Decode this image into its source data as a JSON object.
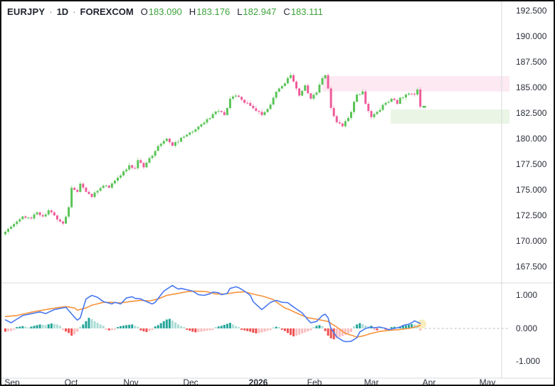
{
  "header": {
    "symbol": "EURJPY",
    "separator": "·",
    "timeframe": "1D",
    "exchange": "FOREXCOM",
    "ohlc": [
      {
        "label": "O",
        "value": "183.090"
      },
      {
        "label": "H",
        "value": "183.176"
      },
      {
        "label": "L",
        "value": "182.947"
      },
      {
        "label": "C",
        "value": "183.111"
      }
    ]
  },
  "price_axis": {
    "labels": [
      "192.500",
      "190.000",
      "187.500",
      "185.000",
      "182.500",
      "180.000",
      "177.500",
      "175.000",
      "172.500",
      "170.000",
      "167.500"
    ]
  },
  "indicator_axis": {
    "labels": [
      "1.000",
      "0.000",
      "-1.000"
    ]
  },
  "time_axis": {
    "labels": [
      "Sep",
      "Oct",
      "Nov",
      "Dec",
      "2026",
      "Feb",
      "Mar",
      "Apr",
      "May"
    ]
  },
  "colors": {
    "up": "#4ebf4b",
    "down": "#ee4f92",
    "current_price_tick": "#4ebf4b",
    "macd_line": "#4878f0",
    "signal_line": "#f7923b",
    "hist_pos": "#26a69a",
    "hist_pos_light": "#abdcd5",
    "hist_neg": "#f05151",
    "hist_neg_light": "#f8bcbd",
    "supply_zone": "#fce9f2",
    "demand_zone": "#eaf5e5",
    "glow": "#f7e8ae",
    "axis_text": "#2a2e39",
    "separator_line": "#d6d9de",
    "zero_dash": "#b8bbc2"
  },
  "chart_data": {
    "type": "candlestick",
    "title": "EURJPY 1D FOREXCOM with MACD",
    "candle_count": 145,
    "price_axis_ticks": [
      192.5,
      190.0,
      187.5,
      185.0,
      182.5,
      180.0,
      177.5,
      175.0,
      172.5,
      170.0,
      167.5
    ],
    "indicator_axis_ticks": [
      1.0,
      0.0,
      -1.0
    ],
    "time_ticks": [
      "Sep",
      "Oct",
      "Nov",
      "Dec",
      "2026",
      "Feb",
      "Mar",
      "Apr",
      "May"
    ],
    "last_close": 183.111,
    "close_anchors": [
      [
        0,
        170.9
      ],
      [
        2,
        171.4
      ],
      [
        4,
        171.9
      ],
      [
        6,
        172.4
      ],
      [
        9,
        172.2
      ],
      [
        11,
        172.8
      ],
      [
        13,
        172.4
      ],
      [
        15,
        173.0
      ],
      [
        18,
        172.1
      ],
      [
        20,
        171.7
      ],
      [
        22,
        173.3
      ],
      [
        23,
        175.2
      ],
      [
        25,
        174.8
      ],
      [
        26,
        175.6
      ],
      [
        28,
        174.8
      ],
      [
        30,
        174.3
      ],
      [
        32,
        174.9
      ],
      [
        34,
        175.4
      ],
      [
        36,
        175.2
      ],
      [
        38,
        175.9
      ],
      [
        40,
        176.4
      ],
      [
        41,
        176.8
      ],
      [
        43,
        177.4
      ],
      [
        45,
        177.1
      ],
      [
        46,
        177.9
      ],
      [
        48,
        177.2
      ],
      [
        50,
        178.1
      ],
      [
        52,
        178.8
      ],
      [
        54,
        179.5
      ],
      [
        56,
        180.0
      ],
      [
        58,
        179.3
      ],
      [
        60,
        179.7
      ],
      [
        62,
        180.2
      ],
      [
        64,
        180.6
      ],
      [
        66,
        180.9
      ],
      [
        68,
        181.4
      ],
      [
        70,
        181.9
      ],
      [
        72,
        182.4
      ],
      [
        74,
        182.7
      ],
      [
        76,
        182.3
      ],
      [
        78,
        183.9
      ],
      [
        80,
        184.2
      ],
      [
        82,
        183.8
      ],
      [
        83,
        183.5
      ],
      [
        85,
        183.2
      ],
      [
        87,
        182.7
      ],
      [
        89,
        182.3
      ],
      [
        91,
        182.9
      ],
      [
        93,
        184.0
      ],
      [
        95,
        184.9
      ],
      [
        97,
        185.4
      ],
      [
        99,
        186.2
      ],
      [
        101,
        184.9
      ],
      [
        102,
        184.2
      ],
      [
        104,
        185.2
      ],
      [
        106,
        183.9
      ],
      [
        108,
        184.5
      ],
      [
        110,
        185.9
      ],
      [
        111,
        186.2
      ],
      [
        112,
        184.9
      ],
      [
        113,
        183.0
      ],
      [
        115,
        181.6
      ],
      [
        117,
        181.2
      ],
      [
        118,
        181.7
      ],
      [
        120,
        182.6
      ],
      [
        121,
        183.6
      ],
      [
        122,
        184.3
      ],
      [
        124,
        184.6
      ],
      [
        125,
        183.4
      ],
      [
        127,
        182.1
      ],
      [
        128,
        182.4
      ],
      [
        130,
        182.8
      ],
      [
        131,
        183.3
      ],
      [
        133,
        183.6
      ],
      [
        134,
        183.9
      ],
      [
        136,
        183.4
      ],
      [
        137,
        184.0
      ],
      [
        139,
        184.3
      ],
      [
        140,
        184.4
      ],
      [
        142,
        184.3
      ],
      [
        143,
        184.8
      ],
      [
        144,
        183.111
      ]
    ],
    "zones": [
      {
        "name": "supply-zone",
        "price_top": 186.1,
        "price_bottom": 184.6,
        "start_index": 110.5
      },
      {
        "name": "demand-zone",
        "price_top": 182.85,
        "price_bottom": 181.45,
        "start_index": 134.1
      }
    ],
    "macd": {
      "macd_anchors": [
        [
          0,
          0.26
        ],
        [
          2,
          0.17
        ],
        [
          6,
          0.39
        ],
        [
          12,
          0.5
        ],
        [
          14,
          0.45
        ],
        [
          17,
          0.57
        ],
        [
          21,
          0.64
        ],
        [
          24,
          0.34
        ],
        [
          25,
          0.25
        ],
        [
          26,
          0.32
        ],
        [
          28,
          0.89
        ],
        [
          30,
          1.0
        ],
        [
          32,
          0.94
        ],
        [
          34,
          0.81
        ],
        [
          37,
          0.74
        ],
        [
          38,
          0.79
        ],
        [
          40,
          0.74
        ],
        [
          42,
          0.92
        ],
        [
          44,
          0.96
        ],
        [
          45,
          0.91
        ],
        [
          47,
          0.89
        ],
        [
          49,
          0.81
        ],
        [
          51,
          0.74
        ],
        [
          52,
          0.79
        ],
        [
          55,
          1.13
        ],
        [
          58,
          1.3
        ],
        [
          59,
          1.24
        ],
        [
          60,
          1.19
        ],
        [
          61,
          1.21
        ],
        [
          63,
          1.17
        ],
        [
          65,
          1.13
        ],
        [
          67,
          1.02
        ],
        [
          69,
          1.0
        ],
        [
          71,
          1.05
        ],
        [
          72,
          1.1
        ],
        [
          74,
          1.08
        ],
        [
          75,
          1.02
        ],
        [
          77,
          1.06
        ],
        [
          78,
          1.21
        ],
        [
          80,
          1.26
        ],
        [
          81,
          1.23
        ],
        [
          83,
          1.13
        ],
        [
          85,
          1.0
        ],
        [
          86,
          0.81
        ],
        [
          89,
          0.57
        ],
        [
          90,
          0.64
        ],
        [
          92,
          0.79
        ],
        [
          94,
          0.85
        ],
        [
          96,
          0.79
        ],
        [
          98,
          0.78
        ],
        [
          100,
          0.65
        ],
        [
          103,
          0.47
        ],
        [
          105,
          0.26
        ],
        [
          106,
          0.17
        ],
        [
          108,
          0.21
        ],
        [
          110,
          0.39
        ],
        [
          111,
          0.43
        ],
        [
          112,
          0.32
        ],
        [
          113,
          0.0
        ],
        [
          115,
          -0.26
        ],
        [
          117,
          -0.37
        ],
        [
          118,
          -0.4
        ],
        [
          120,
          -0.39
        ],
        [
          122,
          -0.28
        ],
        [
          123,
          -0.11
        ],
        [
          125,
          0.0
        ],
        [
          127,
          0.04
        ],
        [
          128,
          0.02
        ],
        [
          130,
          0.04
        ],
        [
          132,
          0.0
        ],
        [
          133,
          -0.04
        ],
        [
          135,
          0.0
        ],
        [
          137,
          0.04
        ],
        [
          138,
          0.09
        ],
        [
          140,
          0.13
        ],
        [
          141,
          0.17
        ],
        [
          142,
          0.23
        ],
        [
          143,
          0.19
        ],
        [
          144,
          0.15
        ]
      ],
      "signal_anchors": [
        [
          0,
          0.36
        ],
        [
          4,
          0.39
        ],
        [
          9,
          0.49
        ],
        [
          14,
          0.57
        ],
        [
          19,
          0.64
        ],
        [
          21,
          0.66
        ],
        [
          24,
          0.62
        ],
        [
          25,
          0.55
        ],
        [
          28,
          0.62
        ],
        [
          30,
          0.7
        ],
        [
          34,
          0.79
        ],
        [
          37,
          0.79
        ],
        [
          40,
          0.77
        ],
        [
          43,
          0.81
        ],
        [
          47,
          0.85
        ],
        [
          50,
          0.83
        ],
        [
          53,
          0.89
        ],
        [
          56,
          1.0
        ],
        [
          60,
          1.06
        ],
        [
          63,
          1.11
        ],
        [
          66,
          1.13
        ],
        [
          70,
          1.11
        ],
        [
          73,
          1.04
        ],
        [
          76,
          1.04
        ],
        [
          80,
          1.09
        ],
        [
          83,
          1.11
        ],
        [
          86,
          1.04
        ],
        [
          90,
          0.96
        ],
        [
          93,
          0.87
        ],
        [
          95,
          0.74
        ],
        [
          97,
          0.62
        ],
        [
          99,
          0.55
        ],
        [
          102,
          0.43
        ],
        [
          105,
          0.32
        ],
        [
          108,
          0.28
        ],
        [
          112,
          0.21
        ],
        [
          115,
          0.04
        ],
        [
          118,
          -0.15
        ],
        [
          122,
          -0.26
        ],
        [
          124,
          -0.23
        ],
        [
          127,
          -0.15
        ],
        [
          130,
          -0.09
        ],
        [
          133,
          -0.06
        ],
        [
          136,
          -0.04
        ],
        [
          140,
          0.0
        ],
        [
          142,
          0.04
        ],
        [
          144,
          0.09
        ]
      ],
      "histogram_anchors": [
        [
          0,
          -0.1
        ],
        [
          2,
          -0.08
        ],
        [
          3,
          -0.04
        ],
        [
          4,
          0.04
        ],
        [
          6,
          0.07
        ],
        [
          8,
          0.03
        ],
        [
          10,
          0.08
        ],
        [
          12,
          0.12
        ],
        [
          14,
          0.1
        ],
        [
          16,
          0.15
        ],
        [
          18,
          0.12
        ],
        [
          19,
          0.08
        ],
        [
          20,
          -0.05
        ],
        [
          22,
          -0.14
        ],
        [
          23,
          -0.22
        ],
        [
          24,
          -0.18
        ],
        [
          25,
          -0.1
        ],
        [
          26,
          0.05
        ],
        [
          27,
          0.12
        ],
        [
          28,
          0.22
        ],
        [
          29,
          0.32
        ],
        [
          30,
          0.28
        ],
        [
          31,
          0.22
        ],
        [
          32,
          0.17
        ],
        [
          33,
          0.12
        ],
        [
          34,
          0.08
        ],
        [
          35,
          -0.04
        ],
        [
          36,
          -0.06
        ],
        [
          37,
          -0.05
        ],
        [
          38,
          -0.04
        ],
        [
          39,
          0.04
        ],
        [
          40,
          0.07
        ],
        [
          42,
          0.1
        ],
        [
          44,
          0.12
        ],
        [
          45,
          0.08
        ],
        [
          46,
          0.05
        ],
        [
          47,
          -0.06
        ],
        [
          48,
          -0.09
        ],
        [
          49,
          -0.11
        ],
        [
          50,
          -0.08
        ],
        [
          51,
          -0.05
        ],
        [
          52,
          0.06
        ],
        [
          53,
          0.1
        ],
        [
          54,
          0.16
        ],
        [
          55,
          0.22
        ],
        [
          56,
          0.27
        ],
        [
          57,
          0.29
        ],
        [
          58,
          0.24
        ],
        [
          59,
          0.18
        ],
        [
          60,
          0.12
        ],
        [
          61,
          0.07
        ],
        [
          62,
          0.04
        ],
        [
          63,
          -0.04
        ],
        [
          64,
          -0.07
        ],
        [
          65,
          -0.1
        ],
        [
          66,
          -0.12
        ],
        [
          67,
          -0.11
        ],
        [
          68,
          -0.1
        ],
        [
          69,
          -0.08
        ],
        [
          70,
          -0.07
        ],
        [
          71,
          -0.06
        ],
        [
          72,
          -0.05
        ],
        [
          73,
          0.04
        ],
        [
          74,
          0.06
        ],
        [
          75,
          0.08
        ],
        [
          76,
          0.11
        ],
        [
          77,
          0.14
        ],
        [
          78,
          0.17
        ],
        [
          79,
          0.12
        ],
        [
          80,
          0.07
        ],
        [
          81,
          0.04
        ],
        [
          82,
          -0.04
        ],
        [
          83,
          -0.06
        ],
        [
          84,
          -0.08
        ],
        [
          85,
          -0.1
        ],
        [
          86,
          -0.13
        ],
        [
          87,
          -0.15
        ],
        [
          88,
          -0.14
        ],
        [
          89,
          -0.12
        ],
        [
          90,
          -0.1
        ],
        [
          91,
          -0.07
        ],
        [
          92,
          -0.05
        ],
        [
          93,
          0.03
        ],
        [
          94,
          0.05
        ],
        [
          95,
          0.04
        ],
        [
          96,
          -0.04
        ],
        [
          97,
          -0.08
        ],
        [
          98,
          -0.14
        ],
        [
          99,
          -0.2
        ],
        [
          100,
          -0.24
        ],
        [
          101,
          -0.22
        ],
        [
          102,
          -0.19
        ],
        [
          103,
          -0.15
        ],
        [
          104,
          -0.12
        ],
        [
          105,
          -0.09
        ],
        [
          106,
          -0.06
        ],
        [
          107,
          0.04
        ],
        [
          108,
          0.08
        ],
        [
          109,
          0.1
        ],
        [
          110,
          0.07
        ],
        [
          111,
          -0.08
        ],
        [
          112,
          -0.22
        ],
        [
          113,
          -0.3
        ],
        [
          114,
          -0.33
        ],
        [
          115,
          -0.29
        ],
        [
          116,
          -0.26
        ],
        [
          117,
          -0.23
        ],
        [
          118,
          -0.19
        ],
        [
          119,
          -0.15
        ],
        [
          120,
          -0.11
        ],
        [
          121,
          0.07
        ],
        [
          122,
          0.12
        ],
        [
          123,
          0.16
        ],
        [
          124,
          0.13
        ],
        [
          125,
          0.09
        ],
        [
          126,
          0.06
        ],
        [
          127,
          0.08
        ],
        [
          128,
          -0.05
        ],
        [
          129,
          -0.06
        ],
        [
          130,
          0.04
        ],
        [
          131,
          0.03
        ],
        [
          132,
          -0.04
        ],
        [
          133,
          -0.03
        ],
        [
          134,
          0.04
        ],
        [
          135,
          0.05
        ],
        [
          136,
          0.04
        ],
        [
          137,
          0.06
        ],
        [
          138,
          0.08
        ],
        [
          139,
          0.09
        ],
        [
          140,
          0.11
        ],
        [
          141,
          0.13
        ],
        [
          142,
          0.12
        ],
        [
          143,
          0.09
        ],
        [
          144,
          -0.07
        ]
      ]
    }
  }
}
